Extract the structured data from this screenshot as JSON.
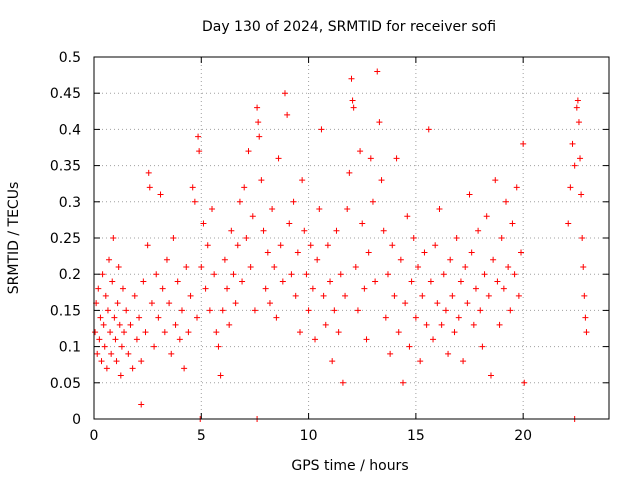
{
  "chart_data": {
    "type": "scatter",
    "title": "Day 130 of 2024, SRMTID for receiver sofi",
    "xlabel": "GPS time / hours",
    "ylabel": "SRMTID / TECUs",
    "xlim": [
      0,
      24
    ],
    "ylim": [
      0,
      0.5
    ],
    "x_ticks": [
      "0",
      "5",
      "10",
      "15",
      "20"
    ],
    "x_tick_values": [
      0,
      5,
      10,
      15,
      20
    ],
    "y_ticks": [
      "0",
      "0.05",
      "0.1",
      "0.15",
      "0.2",
      "0.25",
      "0.3",
      "0.35",
      "0.4",
      "0.45",
      "0.5"
    ],
    "y_tick_values": [
      0,
      0.05,
      0.1,
      0.15,
      0.2,
      0.25,
      0.3,
      0.35,
      0.4,
      0.45,
      0.5
    ],
    "grid": true,
    "marker": "plus",
    "color": "#ff0000",
    "series": [
      {
        "points": [
          [
            0.05,
            0.12
          ],
          [
            0.1,
            0.16
          ],
          [
            0.15,
            0.09
          ],
          [
            0.2,
            0.18
          ],
          [
            0.25,
            0.11
          ],
          [
            0.3,
            0.14
          ],
          [
            0.35,
            0.08
          ],
          [
            0.4,
            0.2
          ],
          [
            0.45,
            0.13
          ],
          [
            0.5,
            0.1
          ],
          [
            0.55,
            0.17
          ],
          [
            0.6,
            0.07
          ],
          [
            0.65,
            0.15
          ],
          [
            0.7,
            0.22
          ],
          [
            0.75,
            0.12
          ],
          [
            0.8,
            0.09
          ],
          [
            0.85,
            0.19
          ],
          [
            0.9,
            0.25
          ],
          [
            0.95,
            0.14
          ],
          [
            1.0,
            0.11
          ],
          [
            1.05,
            0.08
          ],
          [
            1.1,
            0.16
          ],
          [
            1.15,
            0.21
          ],
          [
            1.2,
            0.13
          ],
          [
            1.25,
            0.06
          ],
          [
            1.3,
            0.1
          ],
          [
            1.35,
            0.18
          ],
          [
            1.4,
            0.12
          ],
          [
            1.5,
            0.15
          ],
          [
            1.6,
            0.09
          ],
          [
            1.7,
            0.13
          ],
          [
            1.8,
            0.07
          ],
          [
            1.9,
            0.17
          ],
          [
            2.0,
            0.11
          ],
          [
            2.1,
            0.14
          ],
          [
            2.2,
            0.08
          ],
          [
            2.3,
            0.19
          ],
          [
            2.4,
            0.12
          ],
          [
            2.5,
            0.24
          ],
          [
            2.55,
            0.34
          ],
          [
            2.6,
            0.32
          ],
          [
            2.7,
            0.16
          ],
          [
            2.8,
            0.1
          ],
          [
            2.9,
            0.2
          ],
          [
            3.0,
            0.14
          ],
          [
            3.1,
            0.31
          ],
          [
            3.2,
            0.18
          ],
          [
            3.3,
            0.12
          ],
          [
            3.4,
            0.22
          ],
          [
            3.5,
            0.16
          ],
          [
            3.6,
            0.09
          ],
          [
            3.7,
            0.25
          ],
          [
            3.8,
            0.13
          ],
          [
            3.9,
            0.19
          ],
          [
            4.0,
            0.11
          ],
          [
            4.1,
            0.15
          ],
          [
            4.2,
            0.07
          ],
          [
            4.3,
            0.21
          ],
          [
            4.4,
            0.12
          ],
          [
            4.5,
            0.17
          ],
          [
            4.6,
            0.32
          ],
          [
            4.7,
            0.3
          ],
          [
            4.8,
            0.14
          ],
          [
            4.85,
            0.39
          ],
          [
            4.9,
            0.37
          ],
          [
            5.0,
            0.21
          ],
          [
            5.1,
            0.27
          ],
          [
            5.2,
            0.18
          ],
          [
            5.3,
            0.24
          ],
          [
            5.4,
            0.15
          ],
          [
            5.5,
            0.29
          ],
          [
            5.6,
            0.2
          ],
          [
            5.7,
            0.12
          ],
          [
            5.8,
            0.1
          ],
          [
            5.9,
            0.06
          ],
          [
            6.0,
            0.15
          ],
          [
            6.1,
            0.22
          ],
          [
            6.2,
            0.18
          ],
          [
            6.3,
            0.13
          ],
          [
            6.4,
            0.26
          ],
          [
            6.5,
            0.2
          ],
          [
            6.6,
            0.16
          ],
          [
            6.7,
            0.24
          ],
          [
            6.8,
            0.3
          ],
          [
            6.9,
            0.19
          ],
          [
            7.0,
            0.32
          ],
          [
            7.1,
            0.25
          ],
          [
            7.2,
            0.37
          ],
          [
            7.3,
            0.21
          ],
          [
            7.4,
            0.28
          ],
          [
            7.5,
            0.15
          ],
          [
            7.6,
            0.43
          ],
          [
            7.65,
            0.41
          ],
          [
            7.7,
            0.39
          ],
          [
            7.8,
            0.33
          ],
          [
            7.9,
            0.26
          ],
          [
            8.0,
            0.18
          ],
          [
            8.1,
            0.23
          ],
          [
            8.2,
            0.16
          ],
          [
            8.3,
            0.29
          ],
          [
            8.4,
            0.21
          ],
          [
            8.5,
            0.14
          ],
          [
            8.6,
            0.36
          ],
          [
            8.7,
            0.24
          ],
          [
            8.8,
            0.19
          ],
          [
            8.9,
            0.45
          ],
          [
            9.0,
            0.42
          ],
          [
            9.1,
            0.27
          ],
          [
            9.2,
            0.2
          ],
          [
            9.3,
            0.3
          ],
          [
            9.4,
            0.17
          ],
          [
            9.5,
            0.23
          ],
          [
            9.6,
            0.12
          ],
          [
            9.7,
            0.33
          ],
          [
            9.8,
            0.26
          ],
          [
            9.9,
            0.2
          ],
          [
            10.0,
            0.15
          ],
          [
            10.1,
            0.24
          ],
          [
            10.2,
            0.18
          ],
          [
            10.3,
            0.11
          ],
          [
            10.4,
            0.22
          ],
          [
            10.5,
            0.29
          ],
          [
            10.6,
            0.4
          ],
          [
            10.7,
            0.17
          ],
          [
            10.8,
            0.13
          ],
          [
            10.9,
            0.24
          ],
          [
            11.0,
            0.19
          ],
          [
            11.1,
            0.08
          ],
          [
            11.2,
            0.15
          ],
          [
            11.3,
            0.26
          ],
          [
            11.4,
            0.12
          ],
          [
            11.5,
            0.2
          ],
          [
            11.6,
            0.05
          ],
          [
            11.7,
            0.17
          ],
          [
            11.8,
            0.29
          ],
          [
            11.9,
            0.34
          ],
          [
            12.0,
            0.47
          ],
          [
            12.05,
            0.44
          ],
          [
            12.1,
            0.43
          ],
          [
            12.2,
            0.21
          ],
          [
            12.3,
            0.15
          ],
          [
            12.4,
            0.37
          ],
          [
            12.5,
            0.27
          ],
          [
            12.6,
            0.18
          ],
          [
            12.7,
            0.11
          ],
          [
            12.8,
            0.23
          ],
          [
            12.9,
            0.36
          ],
          [
            13.0,
            0.3
          ],
          [
            13.1,
            0.19
          ],
          [
            13.2,
            0.48
          ],
          [
            13.3,
            0.41
          ],
          [
            13.4,
            0.33
          ],
          [
            13.5,
            0.26
          ],
          [
            13.6,
            0.14
          ],
          [
            13.7,
            0.2
          ],
          [
            13.8,
            0.09
          ],
          [
            13.9,
            0.24
          ],
          [
            14.0,
            0.17
          ],
          [
            14.1,
            0.36
          ],
          [
            14.2,
            0.12
          ],
          [
            14.3,
            0.22
          ],
          [
            14.4,
            0.05
          ],
          [
            14.5,
            0.16
          ],
          [
            14.6,
            0.28
          ],
          [
            14.7,
            0.1
          ],
          [
            14.8,
            0.19
          ],
          [
            14.9,
            0.25
          ],
          [
            15.0,
            0.14
          ],
          [
            15.1,
            0.21
          ],
          [
            15.2,
            0.08
          ],
          [
            15.3,
            0.17
          ],
          [
            15.4,
            0.23
          ],
          [
            15.5,
            0.13
          ],
          [
            15.6,
            0.4
          ],
          [
            15.7,
            0.19
          ],
          [
            15.8,
            0.11
          ],
          [
            15.9,
            0.24
          ],
          [
            16.0,
            0.16
          ],
          [
            16.1,
            0.29
          ],
          [
            16.2,
            0.13
          ],
          [
            16.3,
            0.2
          ],
          [
            16.4,
            0.15
          ],
          [
            16.5,
            0.09
          ],
          [
            16.6,
            0.22
          ],
          [
            16.7,
            0.17
          ],
          [
            16.8,
            0.12
          ],
          [
            16.9,
            0.25
          ],
          [
            17.0,
            0.14
          ],
          [
            17.1,
            0.19
          ],
          [
            17.2,
            0.08
          ],
          [
            17.3,
            0.21
          ],
          [
            17.4,
            0.16
          ],
          [
            17.5,
            0.31
          ],
          [
            17.6,
            0.23
          ],
          [
            17.7,
            0.13
          ],
          [
            17.8,
            0.18
          ],
          [
            17.9,
            0.26
          ],
          [
            18.0,
            0.15
          ],
          [
            18.1,
            0.1
          ],
          [
            18.2,
            0.2
          ],
          [
            18.3,
            0.28
          ],
          [
            18.4,
            0.17
          ],
          [
            18.5,
            0.06
          ],
          [
            18.6,
            0.22
          ],
          [
            18.7,
            0.33
          ],
          [
            18.8,
            0.19
          ],
          [
            18.9,
            0.13
          ],
          [
            19.0,
            0.25
          ],
          [
            19.1,
            0.18
          ],
          [
            19.2,
            0.3
          ],
          [
            19.3,
            0.21
          ],
          [
            19.4,
            0.15
          ],
          [
            19.5,
            0.27
          ],
          [
            19.6,
            0.2
          ],
          [
            19.7,
            0.32
          ],
          [
            19.8,
            0.17
          ],
          [
            19.9,
            0.23
          ],
          [
            20.0,
            0.38
          ],
          [
            20.05,
            0.05
          ],
          [
            22.1,
            0.27
          ],
          [
            22.2,
            0.32
          ],
          [
            22.3,
            0.38
          ],
          [
            22.4,
            0.35
          ],
          [
            22.5,
            0.43
          ],
          [
            22.55,
            0.44
          ],
          [
            22.6,
            0.41
          ],
          [
            22.65,
            0.36
          ],
          [
            22.7,
            0.31
          ],
          [
            22.75,
            0.25
          ],
          [
            22.8,
            0.21
          ],
          [
            22.85,
            0.17
          ],
          [
            22.9,
            0.14
          ],
          [
            22.95,
            0.12
          ],
          [
            4.95,
            0.0
          ],
          [
            7.6,
            0.0
          ],
          [
            22.4,
            0.0
          ],
          [
            2.2,
            0.02
          ]
        ]
      }
    ]
  }
}
